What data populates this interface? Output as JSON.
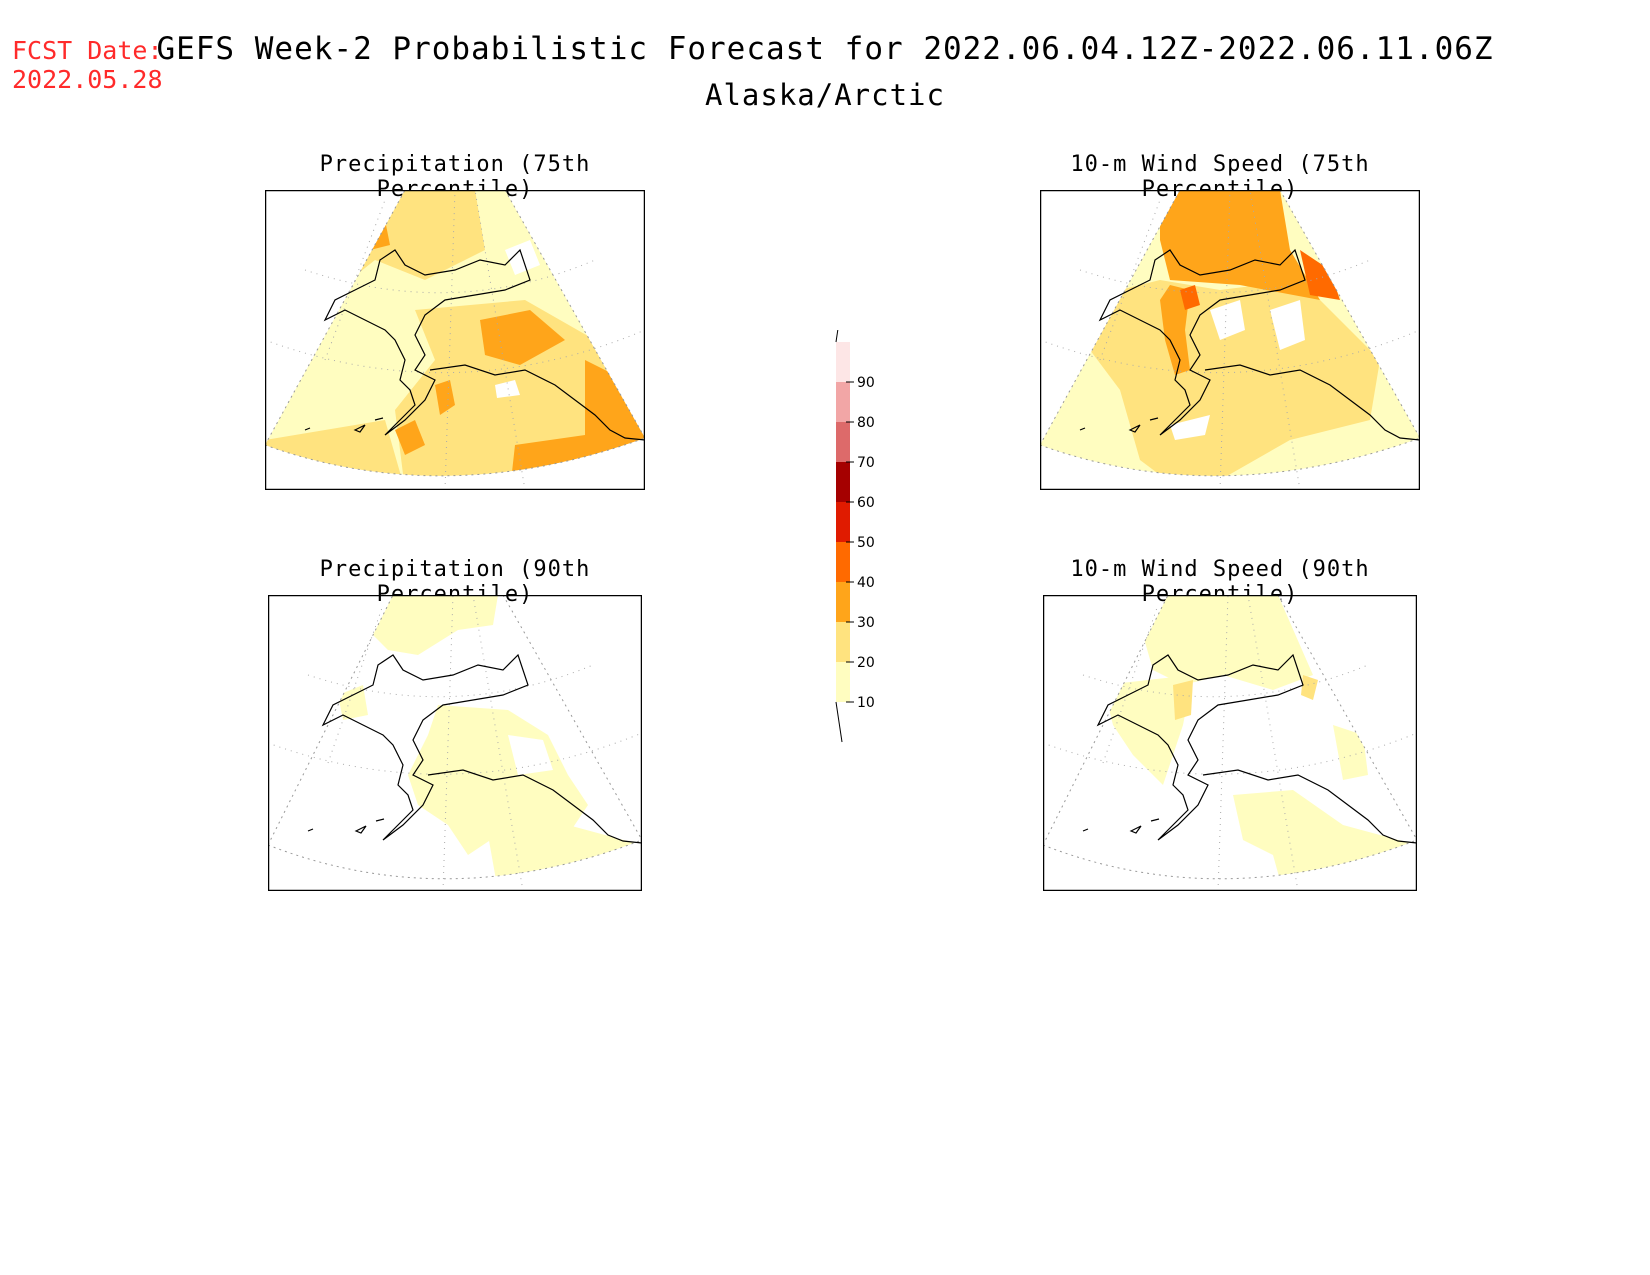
{
  "header": {
    "fcst_label": "FCST Date:",
    "fcst_date": "2022.05.28",
    "title": "GEFS Week-2 Probabilistic Forecast for 2022.06.04.12Z-2022.06.11.06Z",
    "region": "Alaska/Arctic"
  },
  "panels": [
    {
      "title": "Precipitation (75th Percentile)"
    },
    {
      "title": "10-m Wind Speed (75th Percentile)"
    },
    {
      "title": "Precipitation (90th Percentile)"
    },
    {
      "title": "10-m Wind Speed (90th Percentile)"
    }
  ],
  "colorbar": {
    "levels": [
      "10",
      "20",
      "30",
      "40",
      "50",
      "60",
      "70",
      "80",
      "90"
    ],
    "colors": [
      "#fffdc0",
      "#ffe37f",
      "#ffa51a",
      "#ff6a00",
      "#e01b00",
      "#a50000",
      "#dd6a6a",
      "#f2a6a6",
      "#fde6e6"
    ]
  }
}
